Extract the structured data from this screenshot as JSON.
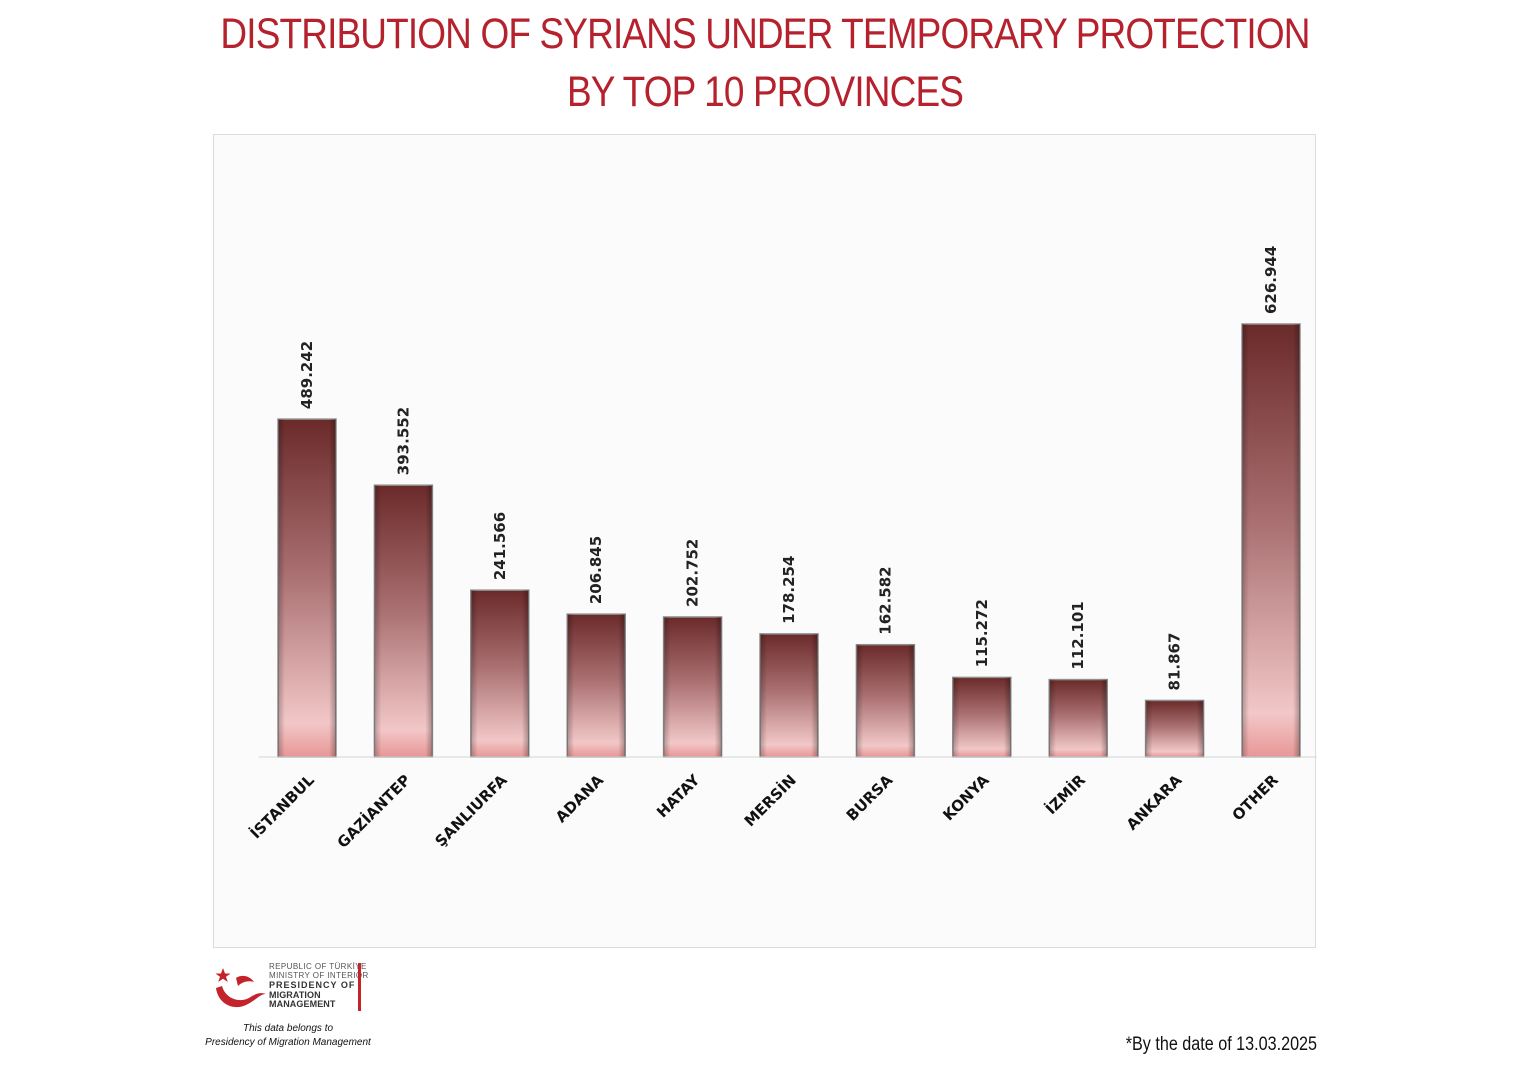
{
  "title_line1": "DISTRIBUTION OF SYRIANS UNDER TEMPORARY PROTECTION",
  "title_line2": "BY TOP 10 PROVINCES",
  "colors": {
    "title": "#b5222e",
    "bar_top": "#6b2a2a",
    "bar_mid": "#a86e70",
    "bar_light": "#f2c7c7",
    "bar_bottom": "#e89696"
  },
  "chart_data": {
    "type": "bar",
    "title": "DISTRIBUTION OF SYRIANS UNDER TEMPORARY PROTECTION BY TOP 10 PROVINCES",
    "xlabel": "",
    "ylabel": "",
    "categories": [
      "İSTANBUL",
      "GAZİANTEP",
      "ŞANLIURFA",
      "ADANA",
      "HATAY",
      "MERSİN",
      "BURSA",
      "KONYA",
      "İZMİR",
      "ANKARA",
      "OTHER"
    ],
    "values": [
      489242,
      393552,
      241566,
      206845,
      202752,
      178254,
      162582,
      115272,
      112101,
      81867,
      626944
    ],
    "value_labels": [
      "489.242",
      "393.552",
      "241.566",
      "206.845",
      "202.752",
      "178.254",
      "162.582",
      "115.272",
      "112.101",
      "81.867",
      "626.944"
    ],
    "grid": false,
    "legend": "none"
  },
  "logo": {
    "line1": "REPUBLIC OF TÜRKİYE",
    "line2": "MINISTRY OF INTERIOR",
    "line3": "PRESIDENCY OF",
    "line4": "MIGRATION MANAGEMENT"
  },
  "note_line1": "This data belongs to",
  "note_line2": "Presidency of Migration Management",
  "date_note": "*By the date of 13.03.2025"
}
